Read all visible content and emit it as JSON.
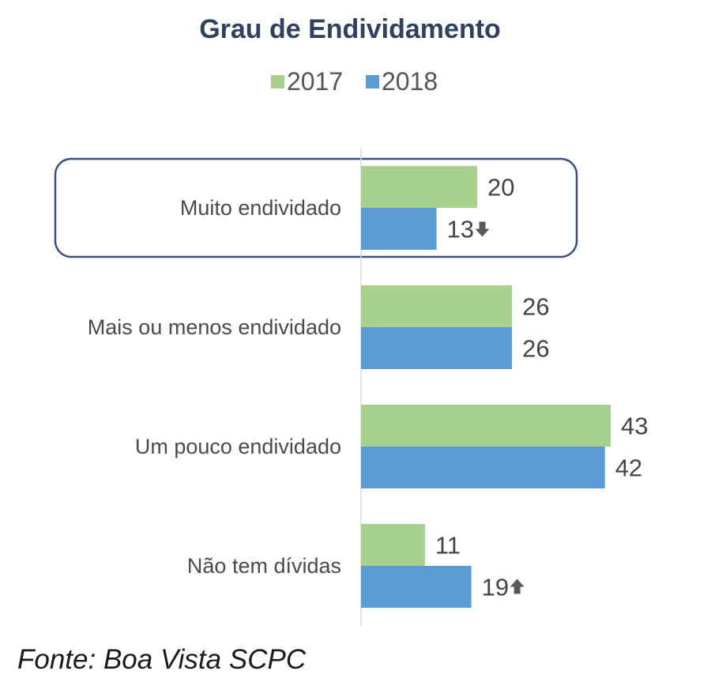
{
  "chart_data": {
    "type": "bar",
    "orientation": "horizontal",
    "title": "Grau de Endividamento",
    "categories": [
      "Muito endividado",
      "Mais ou menos endividado",
      "Um pouco endividado",
      "Não tem dívidas"
    ],
    "series": [
      {
        "name": "2017",
        "values": [
          20,
          26,
          43,
          11
        ],
        "color": "#a9d18e"
      },
      {
        "name": "2018",
        "values": [
          13,
          26,
          42,
          19
        ],
        "color": "#5b9bd5"
      }
    ],
    "xlim": [
      0,
      60
    ],
    "grid": false,
    "legend": "top",
    "highlighted_category": "Muito endividado",
    "trend_arrows": [
      {
        "category": "Muito endividado",
        "series": "2018",
        "direction": "down",
        "icon": "arrow-down-icon"
      },
      {
        "category": "Não tem dívidas",
        "series": "2018",
        "direction": "up",
        "icon": "arrow-up-icon"
      }
    ],
    "source": "Fonte: Boa Vista SCPC"
  }
}
